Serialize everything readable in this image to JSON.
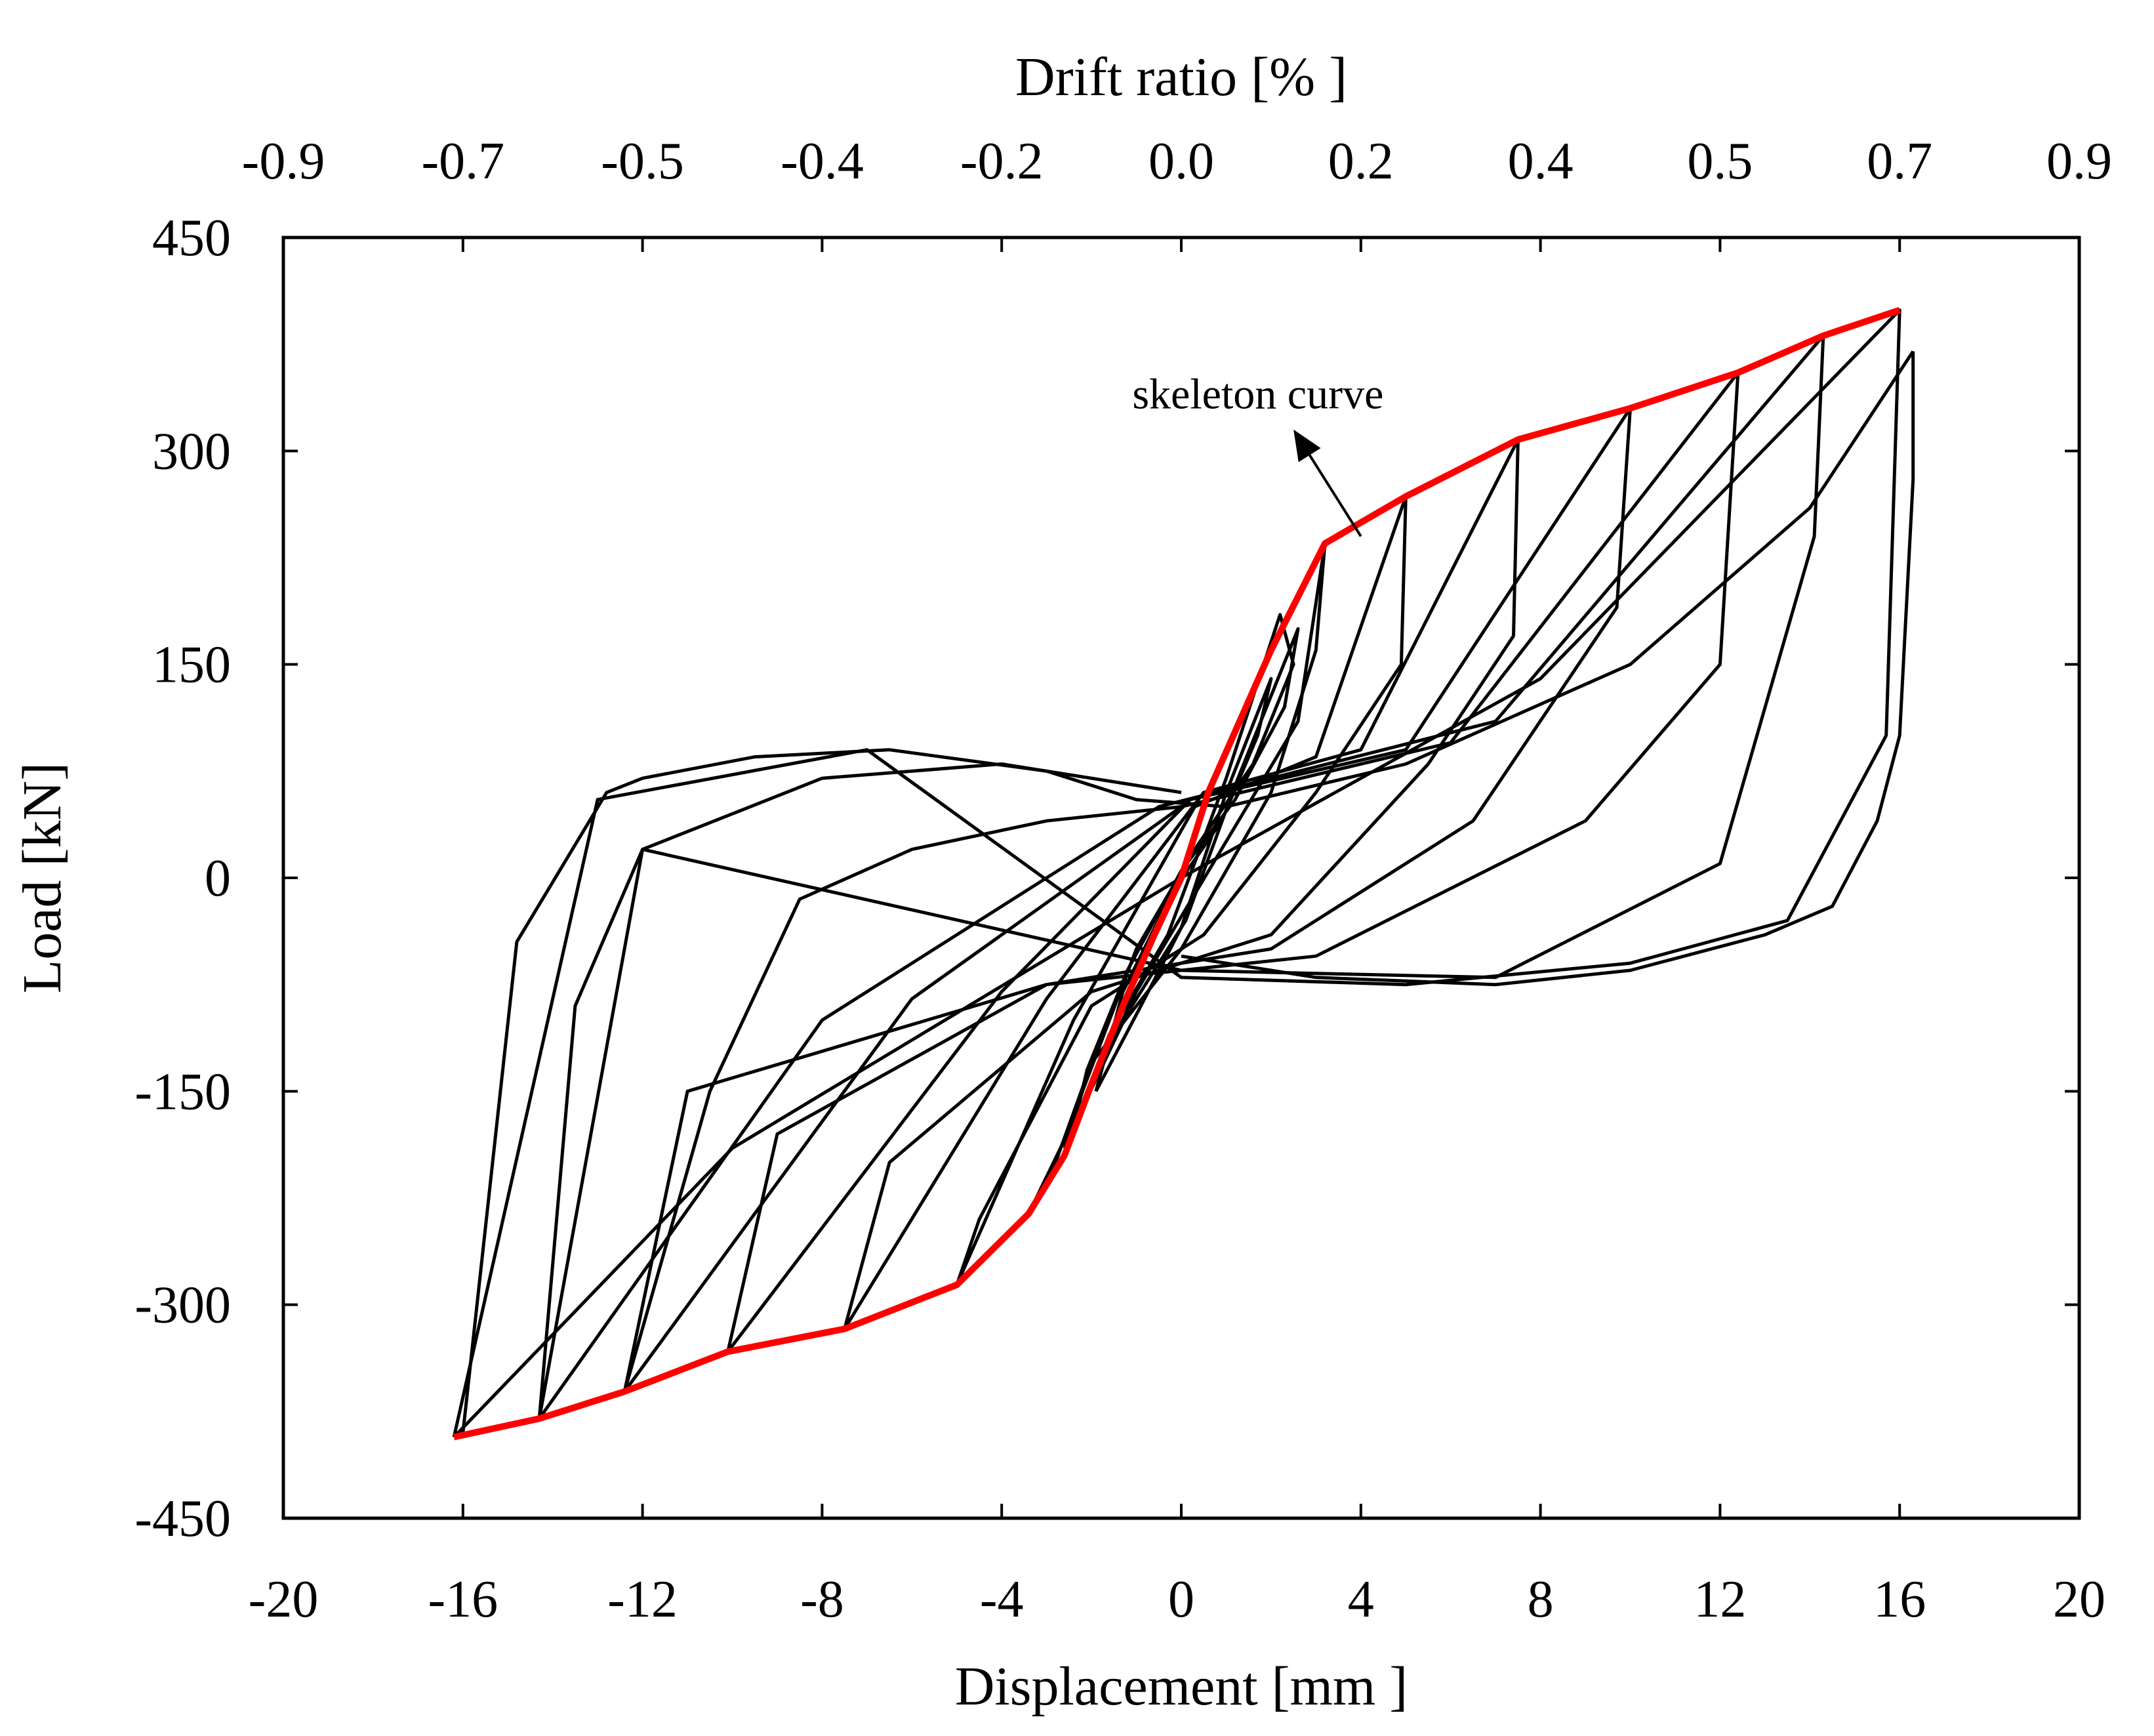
{
  "chart_data": {
    "type": "line",
    "title": "",
    "xlabel": "Displacement [mm ]",
    "ylabel": "Load [kN]",
    "x2label": "Drift ratio [% ]",
    "xlim": [
      -20,
      20
    ],
    "ylim": [
      -450,
      450
    ],
    "xticks": [
      -20,
      -16,
      -12,
      -8,
      -4,
      0,
      4,
      8,
      12,
      16,
      20
    ],
    "xtick_labels": [
      "-20",
      "-16",
      "-12",
      "-8",
      "-4",
      "0",
      "4",
      "8",
      "12",
      "16",
      "20"
    ],
    "yticks": [
      450,
      300,
      150,
      0,
      -150,
      -300,
      -450
    ],
    "ytick_labels": [
      "450",
      "300",
      "150",
      "0",
      "-150",
      "-300",
      "-450"
    ],
    "x2ticks": [
      -20,
      -16,
      -12,
      -8,
      -4,
      0,
      4,
      8,
      12,
      16,
      20
    ],
    "x2tick_labels": [
      "-0.9",
      "-0.7",
      "-0.5",
      "-0.4",
      "-0.2",
      "0.0",
      "0.2",
      "0.4",
      "0.5",
      "0.7",
      "0.9"
    ],
    "grid": false,
    "annotation": {
      "text": "skeleton curve",
      "text_at": [
        3,
        330
      ],
      "arrow_from": [
        4,
        240
      ],
      "arrow_to": [
        2.5,
        315
      ]
    },
    "skeleton_curve": {
      "name": "skeleton curve",
      "color": "#ff0000",
      "x": [
        -16.2,
        -14.3,
        -12.4,
        -10.1,
        -7.5,
        -5.0,
        -3.4,
        -2.6,
        -2.0,
        -1.3,
        -0.6,
        0,
        0.6,
        1.3,
        2.0,
        3.2,
        5.0,
        7.5,
        10.0,
        12.4,
        14.3,
        16.0
      ],
      "y": [
        -393,
        -380,
        -361,
        -333,
        -317,
        -286,
        -236,
        -195,
        -145,
        -90,
        -40,
        0,
        60,
        110,
        160,
        235,
        268,
        308,
        330,
        355,
        381,
        399
      ]
    },
    "hysteresis_loops": {
      "color": "#000000",
      "loops": [
        {
          "x": [
            -2.6,
            -1.6,
            -0.3,
            1.0,
            2.2,
            2.5,
            1.6,
            0.3,
            -1.0,
            -2.2,
            -2.6
          ],
          "y": [
            -190,
            -110,
            -40,
            70,
            185,
            150,
            80,
            20,
            -50,
            -150,
            -190
          ]
        },
        {
          "x": [
            -2.4,
            -1.2,
            0.1,
            1.2,
            2.6,
            2.3,
            1.2,
            0.0,
            -1.2,
            -2.1,
            -2.4
          ],
          "y": [
            -175,
            -95,
            -30,
            65,
            175,
            120,
            55,
            5,
            -65,
            -135,
            -175
          ]
        },
        {
          "x": [
            -1.9,
            -0.9,
            0.0,
            1.0,
            2.0,
            1.7,
            0.9,
            -0.2,
            -1.3,
            -1.9
          ],
          "y": [
            -150,
            -90,
            -35,
            60,
            140,
            100,
            40,
            -10,
            -80,
            -150
          ]
        },
        {
          "x": [
            -3.4,
            -1.0,
            2.6,
            3.2,
            3.0,
            2.0,
            0.0,
            -2.0,
            -2.8,
            -3.4
          ],
          "y": [
            -236,
            -80,
            110,
            235,
            160,
            60,
            -50,
            -130,
            -200,
            -236
          ]
        },
        {
          "x": [
            -5.0,
            -2.4,
            0.3,
            3.0,
            5.0,
            4.9,
            3.0,
            0.5,
            -2.0,
            -4.5,
            -5.0
          ],
          "y": [
            -286,
            -100,
            50,
            85,
            268,
            150,
            60,
            -40,
            -90,
            -240,
            -286
          ]
        },
        {
          "x": [
            -7.5,
            -3.0,
            0.5,
            4.0,
            7.5,
            7.4,
            5.5,
            2.0,
            -2.0,
            -6.5,
            -7.5
          ],
          "y": [
            -317,
            -85,
            60,
            90,
            308,
            170,
            80,
            -40,
            -80,
            -200,
            -317
          ]
        },
        {
          "x": [
            -10.1,
            -4.0,
            0.2,
            5.0,
            10.0,
            9.7,
            6.5,
            2.0,
            -3.0,
            -9.0,
            -10.1
          ],
          "y": [
            -333,
            -80,
            55,
            90,
            330,
            190,
            40,
            -50,
            -75,
            -180,
            -333
          ]
        },
        {
          "x": [
            -12.4,
            -6.0,
            0.0,
            6.0,
            12.4,
            12.0,
            9.0,
            3.0,
            -3.0,
            -11.0,
            -12.4
          ],
          "y": [
            -361,
            -85,
            50,
            95,
            355,
            150,
            40,
            -55,
            -75,
            -150,
            -361
          ]
        },
        {
          "x": [
            -14.3,
            -8.0,
            -0.5,
            7.0,
            14.3,
            14.1,
            12.0,
            7.0,
            0.0,
            -12.0,
            -14.3
          ],
          "y": [
            -380,
            -100,
            50,
            110,
            381,
            240,
            10,
            -70,
            -65,
            20,
            -380
          ]
        },
        {
          "x": [
            -16.2,
            -10.0,
            0.0,
            8.0,
            16.0,
            15.7,
            13.5,
            10.0,
            5.0,
            0.0,
            -7.0,
            -13.0,
            -16.2
          ],
          "y": [
            -393,
            -190,
            0,
            140,
            399,
            100,
            -30,
            -60,
            -75,
            -70,
            90,
            55,
            -393
          ]
        },
        {
          "x": [
            -16.0,
            -14.8,
            -12.8,
            -12.0,
            -9.5,
            -6.5,
            -3.0,
            -1.0,
            1.0,
            5.0,
            10.0,
            14.0,
            16.3
          ],
          "y": [
            -390,
            -45,
            60,
            70,
            85,
            90,
            75,
            55,
            50,
            80,
            150,
            260,
            370
          ]
        },
        {
          "x": [
            16.3,
            16.3,
            16.0,
            15.5,
            14.5,
            13.0,
            10.0,
            7.0,
            3.0,
            0.0
          ],
          "y": [
            370,
            280,
            100,
            40,
            -20,
            -40,
            -65,
            -75,
            -70,
            -55
          ]
        },
        {
          "x": [
            -14.3,
            -13.5,
            -12.0,
            -8.0,
            -4.0,
            0.0
          ],
          "y": [
            -380,
            -90,
            20,
            70,
            80,
            60
          ]
        },
        {
          "x": [
            -12.4,
            -10.5,
            -8.5,
            -6.0,
            -3.0,
            0.0
          ],
          "y": [
            -361,
            -150,
            -15,
            20,
            40,
            50
          ]
        }
      ]
    }
  }
}
